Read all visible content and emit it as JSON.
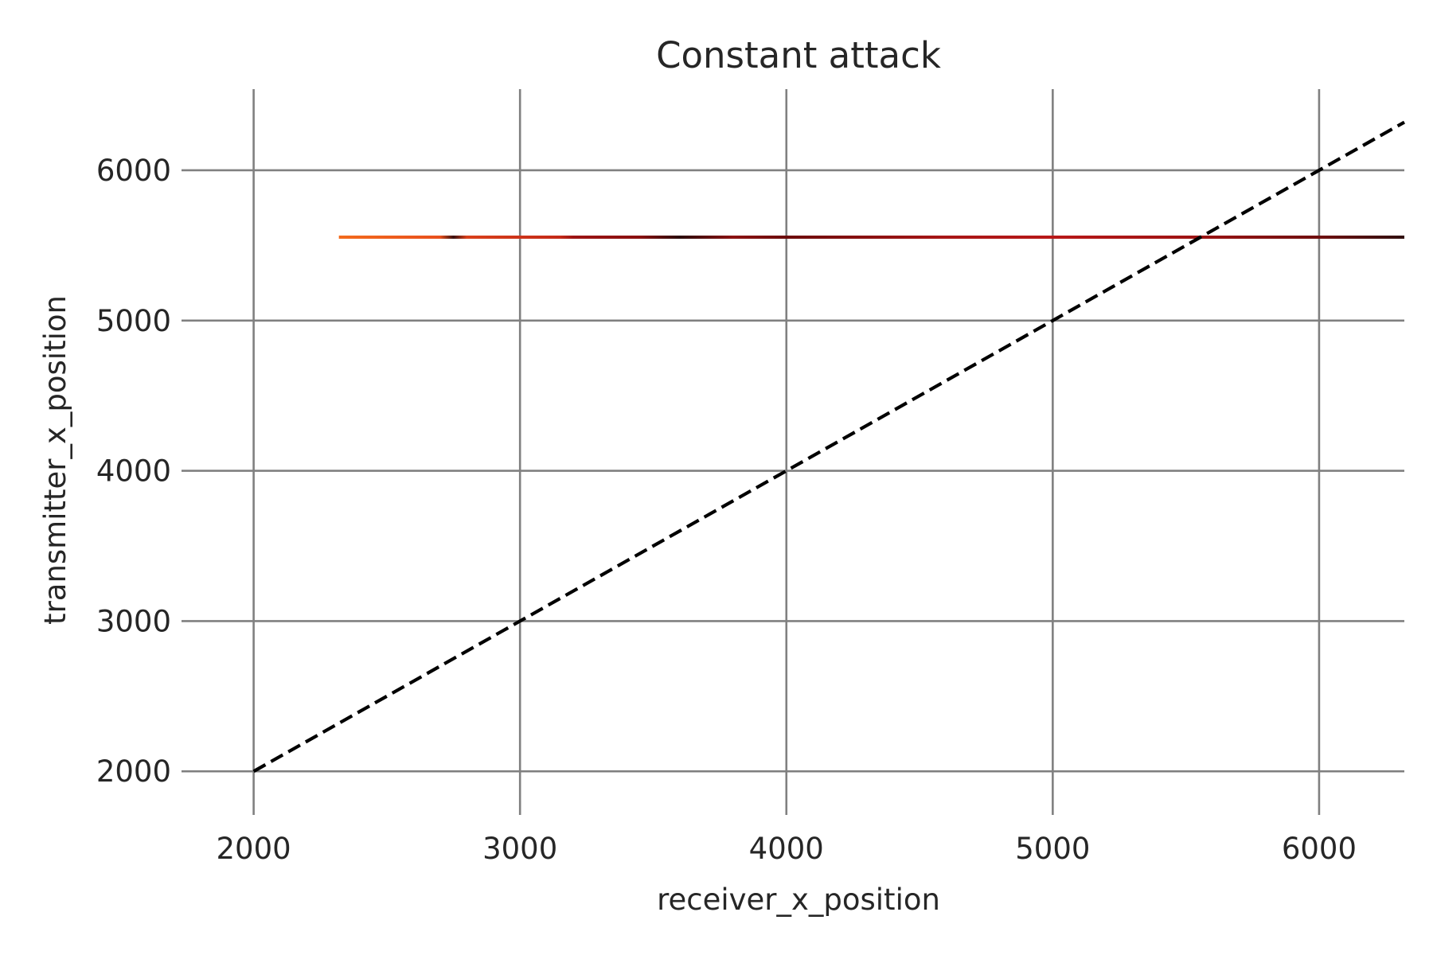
{
  "chart_data": {
    "type": "line",
    "title": "Constant attack",
    "xlabel": "receiver_x_position",
    "ylabel": "transmitter_x_position",
    "xlim": [
      1780,
      6320
    ],
    "ylim": [
      1800,
      6540
    ],
    "xticks": [
      2000,
      3000,
      4000,
      5000,
      6000
    ],
    "yticks": [
      2000,
      3000,
      4000,
      5000,
      6000
    ],
    "grid": true,
    "series": [
      {
        "style": "solid-color-gradient",
        "y": 5555,
        "x_start": 2320,
        "x_end": 6320,
        "color_stops": [
          {
            "x": 2320,
            "color": "#f36b1c"
          },
          {
            "x": 2700,
            "color": "#e9501c"
          },
          {
            "x": 2750,
            "color": "#3a1010"
          },
          {
            "x": 2800,
            "color": "#d9401a"
          },
          {
            "x": 3150,
            "color": "#c42a18"
          },
          {
            "x": 3200,
            "color": "#9c1414"
          },
          {
            "x": 3450,
            "color": "#8a1010"
          },
          {
            "x": 3600,
            "color": "#2a0a0a"
          },
          {
            "x": 3800,
            "color": "#8c1212"
          },
          {
            "x": 4000,
            "color": "#6c0c0c"
          },
          {
            "x": 4600,
            "color": "#a81616"
          },
          {
            "x": 5000,
            "color": "#b81818"
          },
          {
            "x": 5500,
            "color": "#a01414"
          },
          {
            "x": 6000,
            "color": "#701010"
          },
          {
            "x": 6320,
            "color": "#301010"
          }
        ]
      },
      {
        "style": "dashed",
        "color": "#000000",
        "x": [
          2000,
          6320
        ],
        "y": [
          2000,
          6320
        ]
      }
    ]
  }
}
